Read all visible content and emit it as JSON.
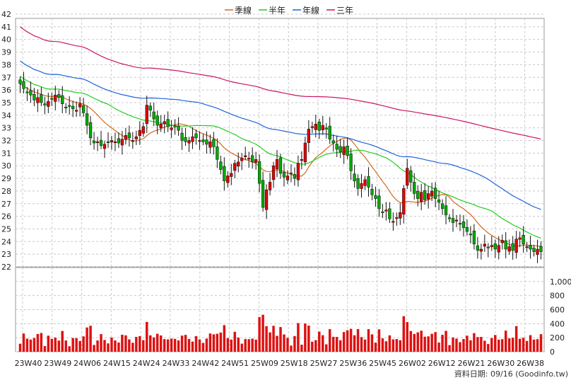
{
  "chart_data": {
    "type": "candlestick",
    "legend": [
      {
        "name": "季線",
        "color": "#d2691e"
      },
      {
        "name": "半年",
        "color": "#22cc22"
      },
      {
        "name": "年線",
        "color": "#1e64dc"
      },
      {
        "name": "三年",
        "color": "#cc1464"
      }
    ],
    "price_axis": {
      "ylim": [
        22,
        42
      ],
      "ticks": [
        22,
        23,
        24,
        25,
        26,
        27,
        28,
        29,
        30,
        31,
        32,
        33,
        34,
        35,
        36,
        37,
        38,
        39,
        40,
        41,
        42
      ]
    },
    "volume_axis": {
      "ylim": [
        0,
        1200
      ],
      "ticks": [
        0,
        200,
        400,
        600,
        800,
        "1,000"
      ]
    },
    "x_ticks": [
      "23W40",
      "23W49",
      "24W06",
      "24W15",
      "24W24",
      "24W33",
      "24W42",
      "24W51",
      "25W09",
      "25W18",
      "25W27",
      "25W36",
      "25W45",
      "26W02",
      "26W12",
      "26W21",
      "26W30",
      "26W38"
    ],
    "grid": true,
    "candle_colors": {
      "up": "#dd0000",
      "down": "#00aa00"
    },
    "volume_color": "#dd1111",
    "footer": "資料日期: 09/16 (Goodinfo.tw)",
    "close": [
      36.5,
      36.1,
      35.8,
      35.6,
      35.2,
      35.4,
      35.0,
      34.8,
      35.1,
      35.3,
      35.6,
      35.4,
      34.9,
      34.6,
      34.7,
      34.5,
      34.4,
      34.9,
      34.2,
      33.2,
      32.2,
      31.8,
      31.9,
      31.6,
      31.7,
      31.9,
      32.0,
      31.9,
      31.8,
      32.1,
      32.4,
      32.2,
      32.0,
      32.3,
      32.8,
      33.1,
      34.8,
      34.4,
      33.7,
      33.2,
      33.3,
      33.5,
      33.1,
      33.0,
      33.1,
      32.8,
      32.0,
      31.9,
      32.0,
      32.3,
      32.2,
      32.0,
      31.9,
      31.7,
      31.9,
      31.5,
      30.5,
      29.7,
      28.8,
      29.2,
      29.4,
      30.2,
      30.3,
      30.6,
      30.8,
      30.6,
      30.3,
      30.5,
      28.6,
      26.7,
      28.1,
      28.7,
      30.0,
      30.5,
      29.4,
      29.1,
      29.2,
      29.4,
      29.0,
      30.2,
      30.5,
      31.8,
      32.9,
      33.1,
      33.3,
      32.8,
      33.2,
      32.9,
      32.1,
      31.8,
      31.3,
      31.1,
      31.5,
      30.8,
      29.6,
      28.8,
      28.2,
      28.6,
      28.9,
      28.3,
      27.7,
      27.4,
      26.6,
      26.3,
      26.5,
      25.8,
      25.6,
      25.9,
      26.3,
      28.2,
      29.8,
      28.7,
      27.8,
      27.4,
      27.9,
      27.3,
      27.8,
      28.0,
      27.4,
      27.1,
      26.6,
      26.1,
      25.8,
      25.5,
      25.7,
      25.4,
      25.1,
      24.8,
      24.6,
      23.8,
      23.3,
      23.4,
      23.8,
      23.5,
      23.7,
      23.4,
      23.7,
      24.1,
      23.4,
      23.6,
      23.3,
      24.2,
      24.3,
      23.8,
      23.6,
      23.4,
      23.2,
      23.4,
      23.2
    ]
  }
}
